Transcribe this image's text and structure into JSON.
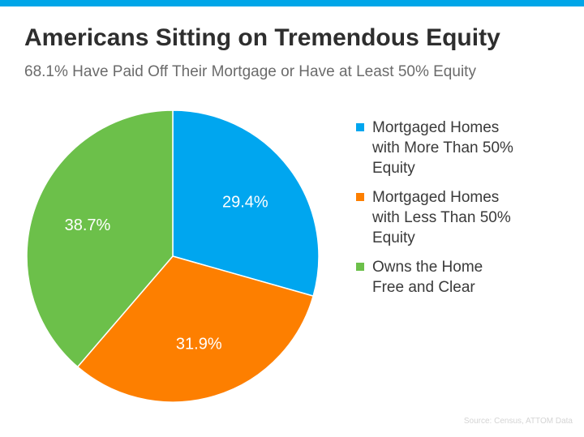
{
  "title": "Americans Sitting on Tremendous Equity",
  "subtitle": "68.1% Have Paid Off Their Mortgage or Have at Least 50% Equity",
  "source": "Source: Census, ATTOM Data",
  "colors": {
    "accent_bar": "#00a6e8"
  },
  "chart_data": {
    "type": "pie",
    "title": "Americans Sitting on Tremendous Equity",
    "subtitle": "68.1% Have Paid Off Their Mortgage or Have at Least 50% Equity",
    "legend_placement": "right",
    "slices": [
      {
        "label": "Mortgaged Homes with More Than 50% Equity",
        "value": 29.4,
        "display": "29.4%",
        "color": "#00a6ef"
      },
      {
        "label": "Mortgaged Homes with Less Than 50% Equity",
        "value": 31.9,
        "display": "31.9%",
        "color": "#fd7f00"
      },
      {
        "label": "Owns the Home Free and Clear",
        "value": 38.7,
        "display": "38.7%",
        "color": "#6cc04a"
      }
    ]
  },
  "legend": {
    "items": [
      {
        "lines": [
          "Mortgaged Homes",
          "with More Than 50%",
          "Equity"
        ],
        "color": "#00a6ef"
      },
      {
        "lines": [
          "Mortgaged Homes",
          "with Less Than 50%",
          "Equity"
        ],
        "color": "#fd7f00"
      },
      {
        "lines": [
          "Owns the Home",
          "Free and Clear"
        ],
        "color": "#6cc04a"
      }
    ]
  }
}
